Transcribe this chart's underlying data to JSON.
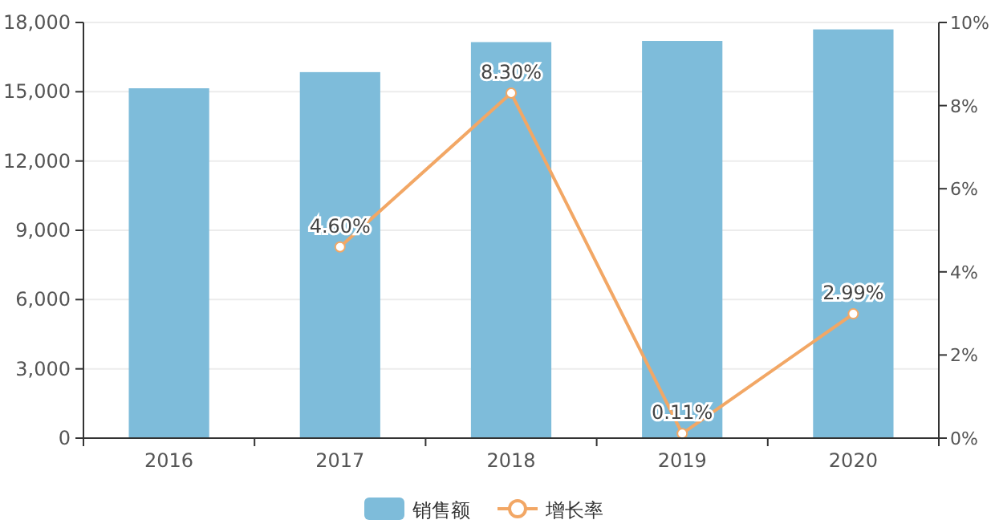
{
  "chart_data": {
    "type": "bar",
    "categories": [
      "2016",
      "2017",
      "2018",
      "2019",
      "2020"
    ],
    "series": [
      {
        "name": "销售额",
        "color": "#7ebcda",
        "values": [
          15150,
          15850,
          17150,
          17200,
          17700
        ]
      },
      {
        "name": "增长率",
        "type": "line",
        "axis": "y2",
        "color": "#f2a765",
        "marker": "circle",
        "values": [
          null,
          4.6,
          8.3,
          0.11,
          2.99
        ],
        "value_labels": [
          null,
          "4.60%",
          "8.30%",
          "0.11%",
          "2.99%"
        ]
      }
    ],
    "ylim": [
      0,
      18000
    ],
    "yticks": [
      0,
      {
        "value": 3000,
        "label": "3,000"
      },
      {
        "value": 6000,
        "label": "6,000"
      },
      {
        "value": 9000,
        "label": "9,000"
      },
      {
        "value": 12000,
        "label": "12,000"
      },
      {
        "value": 15000,
        "label": "15,000"
      },
      {
        "value": 18000,
        "label": "18,000"
      }
    ],
    "y2lim": [
      0,
      10
    ],
    "y2ticks": [
      {
        "value": 0,
        "label": "0%"
      },
      {
        "value": 2,
        "label": "2%"
      },
      {
        "value": 4,
        "label": "4%"
      },
      {
        "value": 6,
        "label": "6%"
      },
      {
        "value": 8,
        "label": "8%"
      },
      {
        "value": 10,
        "label": "10%"
      }
    ],
    "grid": "y",
    "legend": "bottom"
  }
}
